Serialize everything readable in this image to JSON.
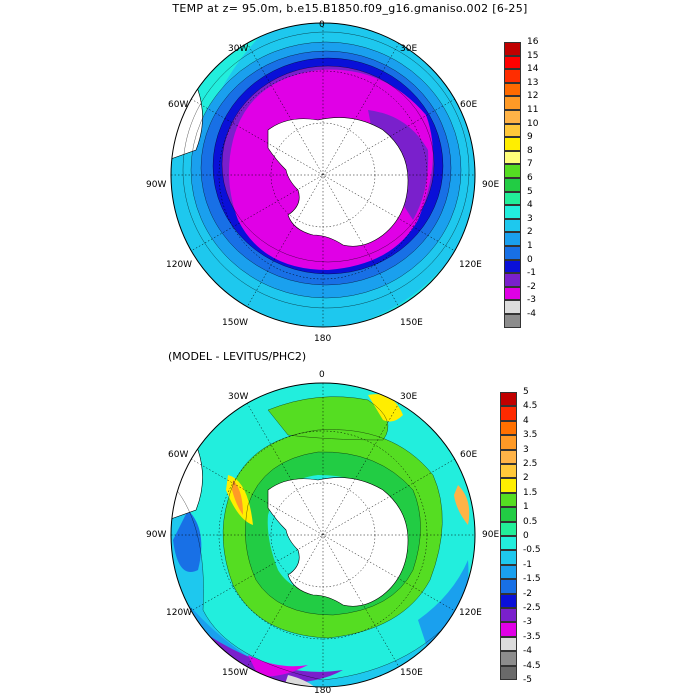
{
  "title": "TEMP at z=  95.0m, b.e15.B1850.f09_g16.gmaniso.002 [6-25]",
  "subtitle": "(MODEL - LEVITUS/PHC2)",
  "map_labels": {
    "top": "0",
    "lon_30w": "30W",
    "lon_30e": "30E",
    "lon_60w": "60W",
    "lon_60e": "60E",
    "lon_90w": "90W",
    "lon_90e": "90E",
    "lon_120w": "120W",
    "lon_120e": "120E",
    "lon_150w": "150W",
    "lon_150e": "150E",
    "bottom": "180"
  },
  "colorbar_top": {
    "labels": [
      "16",
      "15",
      "14",
      "13",
      "12",
      "11",
      "10",
      "9",
      "8",
      "7",
      "6",
      "5",
      "4",
      "3",
      "2",
      "1",
      "0",
      "-1",
      "-2",
      "-3",
      "-4"
    ],
    "colors": [
      "#c00000",
      "#ff0000",
      "#ff2d00",
      "#ff6a00",
      "#ff9a26",
      "#ffb347",
      "#ffc83a",
      "#ffee00",
      "#ffff7a",
      "#55dd22",
      "#22cc44",
      "#22ee99",
      "#22eedd",
      "#1ec8ee",
      "#1aa0ee",
      "#1870e6",
      "#0a10d8",
      "#7a20cc",
      "#e000e6",
      "#dcdcdc",
      "#8c8c8c"
    ]
  },
  "colorbar_bottom": {
    "labels": [
      "5",
      "4.5",
      "4",
      "3.5",
      "3",
      "2.5",
      "2",
      "1.5",
      "1",
      "0.5",
      "0",
      "-0.5",
      "-1",
      "-1.5",
      "-2",
      "-2.5",
      "-3",
      "-3.5",
      "-4",
      "-4.5",
      "-5"
    ],
    "colors": [
      "#c00000",
      "#ff2a00",
      "#ff7000",
      "#ff9a26",
      "#ffb347",
      "#ffc83a",
      "#ffee00",
      "#55dd22",
      "#22cc44",
      "#22ee99",
      "#22eedd",
      "#1ec8ee",
      "#1aa0ee",
      "#1870e6",
      "#0a10d8",
      "#7a20cc",
      "#e000e6",
      "#dcdcdc",
      "#8c8c8c",
      "#6a6a6a"
    ]
  }
}
